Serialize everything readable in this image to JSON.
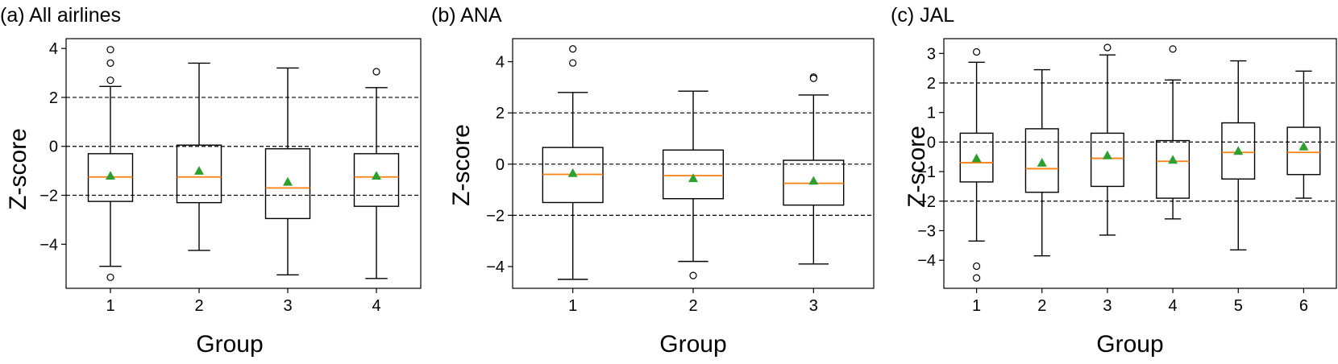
{
  "chart_data": [
    {
      "type": "box",
      "title": "(a) All airlines",
      "xlabel": "Group",
      "ylabel": "Z-score",
      "ylim": [
        -5.8,
        4.4
      ],
      "yticks": [
        -4,
        -2,
        0,
        2,
        4
      ],
      "yticklabels": [
        "−4",
        "−2",
        "0",
        "2",
        "4"
      ],
      "reference_lines": [
        2,
        0,
        -2
      ],
      "groups": [
        {
          "label": "1",
          "whisker_low": -4.9,
          "q1": -2.25,
          "median": -1.25,
          "q3": -0.3,
          "whisker_high": 2.45,
          "mean": -1.2,
          "outliers": [
            3.95,
            3.4,
            2.7,
            -5.35
          ]
        },
        {
          "label": "2",
          "whisker_low": -4.25,
          "q1": -2.3,
          "median": -1.25,
          "q3": 0.05,
          "whisker_high": 3.4,
          "mean": -1.0,
          "outliers": []
        },
        {
          "label": "3",
          "whisker_low": -5.25,
          "q1": -2.95,
          "median": -1.7,
          "q3": -0.1,
          "whisker_high": 3.2,
          "mean": -1.45,
          "outliers": []
        },
        {
          "label": "4",
          "whisker_low": -5.4,
          "q1": -2.45,
          "median": -1.25,
          "q3": -0.3,
          "whisker_high": 2.4,
          "mean": -1.2,
          "outliers": [
            3.05
          ]
        }
      ]
    },
    {
      "type": "box",
      "title": "(b) ANA",
      "xlabel": "Group",
      "ylabel": "Z-score",
      "ylim": [
        -4.85,
        4.9
      ],
      "yticks": [
        -4,
        -2,
        0,
        2,
        4
      ],
      "yticklabels": [
        "−4",
        "−2",
        "0",
        "2",
        "4"
      ],
      "reference_lines": [
        2,
        0,
        -2
      ],
      "groups": [
        {
          "label": "1",
          "whisker_low": -4.5,
          "q1": -1.5,
          "median": -0.4,
          "q3": 0.65,
          "whisker_high": 2.8,
          "mean": -0.35,
          "outliers": [
            4.5,
            3.95
          ]
        },
        {
          "label": "2",
          "whisker_low": -3.8,
          "q1": -1.35,
          "median": -0.45,
          "q3": 0.55,
          "whisker_high": 2.85,
          "mean": -0.55,
          "outliers": [
            -4.35
          ]
        },
        {
          "label": "3",
          "whisker_low": -3.9,
          "q1": -1.6,
          "median": -0.75,
          "q3": 0.15,
          "whisker_high": 2.7,
          "mean": -0.65,
          "outliers": [
            3.4,
            3.35
          ]
        }
      ]
    },
    {
      "type": "box",
      "title": "(c) JAL",
      "xlabel": "Group",
      "ylabel": "Z-score",
      "ylim": [
        -4.95,
        3.5
      ],
      "yticks": [
        -4,
        -3,
        -2,
        -1,
        0,
        1,
        2,
        3
      ],
      "yticklabels": [
        "−4",
        "−3",
        "−2",
        "−1",
        "0",
        "1",
        "2",
        "3"
      ],
      "reference_lines": [
        2,
        0,
        -2
      ],
      "groups": [
        {
          "label": "1",
          "whisker_low": -3.35,
          "q1": -1.35,
          "median": -0.7,
          "q3": 0.3,
          "whisker_high": 2.7,
          "mean": -0.55,
          "outliers": [
            3.05,
            -4.2,
            -4.6
          ]
        },
        {
          "label": "2",
          "whisker_low": -3.85,
          "q1": -1.7,
          "median": -0.9,
          "q3": 0.45,
          "whisker_high": 2.45,
          "mean": -0.7,
          "outliers": []
        },
        {
          "label": "3",
          "whisker_low": -3.15,
          "q1": -1.5,
          "median": -0.55,
          "q3": 0.3,
          "whisker_high": 2.95,
          "mean": -0.45,
          "outliers": [
            3.2
          ]
        },
        {
          "label": "4",
          "whisker_low": -2.6,
          "q1": -1.9,
          "median": -0.65,
          "q3": 0.05,
          "whisker_high": 2.1,
          "mean": -0.6,
          "outliers": [
            3.15
          ]
        },
        {
          "label": "5",
          "whisker_low": -3.65,
          "q1": -1.25,
          "median": -0.35,
          "q3": 0.65,
          "whisker_high": 2.75,
          "mean": -0.3,
          "outliers": []
        },
        {
          "label": "6",
          "whisker_low": -1.9,
          "q1": -1.1,
          "median": -0.35,
          "q3": 0.5,
          "whisker_high": 2.4,
          "mean": -0.15,
          "outliers": []
        }
      ]
    }
  ],
  "colors": {
    "median": "#ff7f0e",
    "mean": "#2ca02c",
    "box": "#000000",
    "reference": "#000000"
  }
}
